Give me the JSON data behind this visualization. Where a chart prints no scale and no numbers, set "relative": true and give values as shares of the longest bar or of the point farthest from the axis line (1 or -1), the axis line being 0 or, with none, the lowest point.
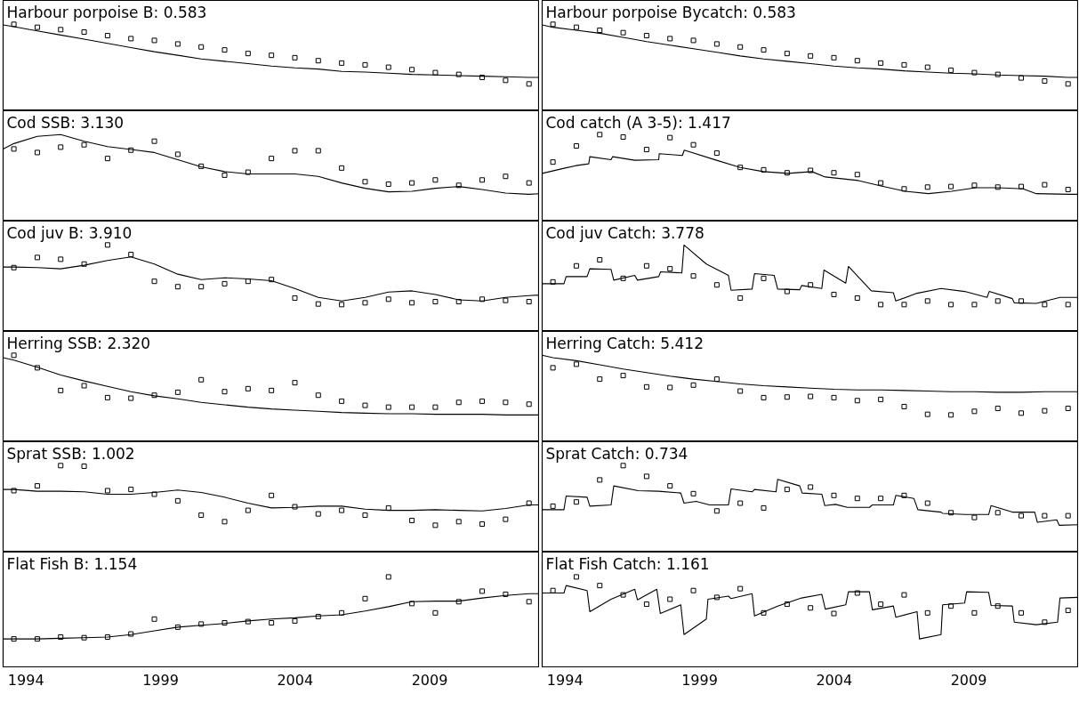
{
  "chart_data": [
    {
      "type": "line",
      "title": "Harbour porpoise B: 0.583",
      "relative": true,
      "tick_labels": false,
      "xlim": [
        1993.15,
        2013.08
      ],
      "x": [
        1993.55,
        1994.42,
        1995.29,
        1996.16,
        1997.03,
        1997.9,
        1998.77,
        1999.64,
        2000.51,
        2001.38,
        2002.25,
        2003.12,
        2003.99,
        2004.86,
        2005.73,
        2006.6,
        2007.47,
        2008.34,
        2009.21,
        2010.08,
        2010.95,
        2011.82,
        2012.69
      ],
      "series": [
        {
          "type": "scatter",
          "marker": "square",
          "color": "#000000",
          "values": [
            1,
            0.95,
            0.91,
            0.87,
            0.81,
            0.76,
            0.73,
            0.67,
            0.62,
            0.57,
            0.51,
            0.48,
            0.44,
            0.39,
            0.35,
            0.32,
            0.28,
            0.24,
            0.19,
            0.16,
            0.11,
            0.06,
            0
          ]
        },
        {
          "color": "#000000",
          "x": [
            1993.15,
            1993.55,
            1994.42,
            1995.29,
            1996.16,
            1997.03,
            1997.9,
            1998.77,
            1999.64,
            2000.51,
            2001.38,
            2002.25,
            2003.12,
            2003.99,
            2004.86,
            2005.73,
            2006.6,
            2007.47,
            2008.34,
            2009.21,
            2010.08,
            2010.95,
            2011.82,
            2012.69,
            2013.08
          ],
          "values": [
            0.99,
            0.96,
            0.89,
            0.82,
            0.75,
            0.68,
            0.61,
            0.54,
            0.48,
            0.42,
            0.38,
            0.34,
            0.3,
            0.27,
            0.25,
            0.21,
            0.2,
            0.18,
            0.16,
            0.15,
            0.14,
            0.13,
            0.12,
            0.11,
            0.11
          ]
        }
      ]
    },
    {
      "type": "line",
      "title": "Harbour porpoise Bycatch: 0.583",
      "relative": true,
      "tick_labels": false,
      "xlim": [
        1993.15,
        2013.08
      ],
      "x": [
        1993.55,
        1994.42,
        1995.29,
        1996.16,
        1997.03,
        1997.9,
        1998.77,
        1999.64,
        2000.51,
        2001.38,
        2002.25,
        2003.12,
        2003.99,
        2004.86,
        2005.73,
        2006.6,
        2007.47,
        2008.34,
        2009.21,
        2010.08,
        2010.95,
        2011.82,
        2012.69
      ],
      "series": [
        {
          "type": "scatter",
          "marker": "square",
          "color": "#000000",
          "values": [
            1,
            0.95,
            0.9,
            0.86,
            0.81,
            0.76,
            0.73,
            0.67,
            0.62,
            0.57,
            0.51,
            0.47,
            0.44,
            0.39,
            0.35,
            0.32,
            0.28,
            0.23,
            0.19,
            0.16,
            0.1,
            0.05,
            0
          ]
        },
        {
          "color": "#000000",
          "x": [
            1993.15,
            1993.55,
            1994.42,
            1995.29,
            1996.16,
            1997.03,
            1997.9,
            1998.77,
            1999.64,
            2000.51,
            2001.38,
            2002.25,
            2003.12,
            2003.99,
            2004.86,
            2005.73,
            2006.6,
            2007.47,
            2008.34,
            2009.21,
            2010.08,
            2010.95,
            2011.82,
            2012.69,
            2013.08
          ],
          "values": [
            0.99,
            0.95,
            0.9,
            0.85,
            0.78,
            0.71,
            0.65,
            0.59,
            0.53,
            0.47,
            0.42,
            0.38,
            0.34,
            0.3,
            0.27,
            0.25,
            0.22,
            0.2,
            0.18,
            0.17,
            0.15,
            0.14,
            0.13,
            0.11,
            0.11
          ]
        }
      ]
    },
    {
      "type": "line",
      "title": "Cod SSB: 3.130",
      "relative": true,
      "tick_labels": false,
      "xlim": [
        1993.15,
        2013.08
      ],
      "x": [
        1993.55,
        1994.42,
        1995.29,
        1996.16,
        1997.03,
        1997.9,
        1998.77,
        1999.64,
        2000.51,
        2001.38,
        2002.25,
        2003.12,
        2003.99,
        2004.86,
        2005.73,
        2006.6,
        2007.47,
        2008.34,
        2009.21,
        2010.08,
        2010.95,
        2011.82,
        2012.69
      ],
      "series": [
        {
          "type": "scatter",
          "marker": "square",
          "color": "#000000",
          "values": [
            0.76,
            0.7,
            0.79,
            0.83,
            0.6,
            0.74,
            0.89,
            0.67,
            0.47,
            0.32,
            0.37,
            0.6,
            0.73,
            0.73,
            0.44,
            0.21,
            0.17,
            0.19,
            0.24,
            0.15,
            0.24,
            0.3,
            0.19
          ]
        },
        {
          "color": "#000000",
          "x": [
            1993.15,
            1993.55,
            1994.42,
            1995.29,
            1996.16,
            1997.03,
            1997.9,
            1998.77,
            1999.64,
            2000.51,
            2001.38,
            2002.25,
            2003.12,
            2003.99,
            2004.86,
            2005.73,
            2006.6,
            2007.47,
            2008.34,
            2009.21,
            2010.08,
            2010.95,
            2011.82,
            2012.69,
            2013.08
          ],
          "values": [
            0.76,
            0.85,
            0.97,
            1,
            0.89,
            0.8,
            0.75,
            0.7,
            0.58,
            0.46,
            0.38,
            0.34,
            0.34,
            0.34,
            0.3,
            0.19,
            0.1,
            0.04,
            0.05,
            0.1,
            0.13,
            0.08,
            0.02,
            0,
            0.01
          ]
        }
      ]
    },
    {
      "type": "line",
      "title": "Cod catch (A 3-5): 1.417",
      "relative": true,
      "tick_labels": false,
      "xlim": [
        1993.15,
        2013.08
      ],
      "x": [
        1993.55,
        1994.42,
        1995.29,
        1996.16,
        1997.03,
        1997.9,
        1998.77,
        1999.64,
        2000.51,
        2001.38,
        2002.25,
        2003.12,
        2003.99,
        2004.86,
        2005.73,
        2006.6,
        2007.47,
        2008.34,
        2009.21,
        2010.08,
        2010.95,
        2011.82,
        2012.69
      ],
      "series": [
        {
          "type": "scatter",
          "marker": "square",
          "color": "#000000",
          "values": [
            0.54,
            0.81,
            1,
            0.96,
            0.75,
            0.95,
            0.83,
            0.69,
            0.45,
            0.41,
            0.36,
            0.4,
            0.36,
            0.33,
            0.19,
            0.09,
            0.12,
            0.13,
            0.15,
            0.12,
            0.13,
            0.16,
            0.08
          ]
        },
        {
          "color": "#000000",
          "x": [
            1993.15,
            1994.0,
            1994.4,
            1994.88,
            1994.92,
            1995.71,
            1995.77,
            1996.59,
            1997.48,
            1997.5,
            1998.36,
            1998.43,
            1999.63,
            2000.51,
            2001.37,
            2002.28,
            2003.17,
            2003.67,
            2004.9,
            2005.74,
            2006.64,
            2007.5,
            2008.36,
            2009.26,
            2010.12,
            2011.02,
            2011.51,
            2012.74,
            2013.08
          ],
          "values": [
            0.35,
            0.44,
            0.48,
            0.51,
            0.63,
            0.58,
            0.63,
            0.57,
            0.58,
            0.68,
            0.65,
            0.74,
            0.57,
            0.45,
            0.38,
            0.35,
            0.38,
            0.29,
            0.23,
            0.14,
            0.05,
            0.01,
            0.05,
            0.11,
            0.11,
            0.09,
            0.01,
            0,
            0
          ]
        }
      ]
    },
    {
      "type": "line",
      "title": "Cod juv B: 3.910",
      "relative": true,
      "tick_labels": false,
      "xlim": [
        1993.15,
        2013.08
      ],
      "x": [
        1993.55,
        1994.42,
        1995.29,
        1996.16,
        1997.03,
        1997.9,
        1998.77,
        1999.64,
        2000.51,
        2001.38,
        2002.25,
        2003.12,
        2003.99,
        2004.86,
        2005.73,
        2006.6,
        2007.47,
        2008.34,
        2009.21,
        2010.08,
        2010.95,
        2011.82,
        2012.69
      ],
      "series": [
        {
          "type": "scatter",
          "marker": "square",
          "color": "#000000",
          "values": [
            0.62,
            0.79,
            0.76,
            0.68,
            1,
            0.84,
            0.39,
            0.3,
            0.3,
            0.35,
            0.39,
            0.42,
            0.11,
            0.01,
            0,
            0.03,
            0.09,
            0.03,
            0.05,
            0.05,
            0.09,
            0.07,
            0.05
          ]
        },
        {
          "color": "#000000",
          "x": [
            1993.15,
            1993.55,
            1994.42,
            1995.29,
            1996.16,
            1997.03,
            1997.9,
            1998.77,
            1999.64,
            2000.51,
            2001.38,
            2002.25,
            2003.12,
            2003.99,
            2004.86,
            2005.73,
            2006.6,
            2007.47,
            2008.34,
            2009.21,
            2010.08,
            2010.95,
            2011.82,
            2012.69,
            2013.08
          ],
          "values": [
            0.63,
            0.63,
            0.62,
            0.6,
            0.66,
            0.74,
            0.8,
            0.68,
            0.51,
            0.42,
            0.45,
            0.43,
            0.4,
            0.27,
            0.12,
            0.06,
            0.12,
            0.21,
            0.23,
            0.17,
            0.08,
            0.06,
            0.12,
            0.15,
            0.16
          ]
        }
      ]
    },
    {
      "type": "line",
      "title": "Cod juv Catch: 3.778",
      "relative": true,
      "tick_labels": false,
      "xlim": [
        1993.15,
        2013.08
      ],
      "x": [
        1993.55,
        1994.42,
        1995.29,
        1996.16,
        1997.03,
        1997.9,
        1998.77,
        1999.64,
        2000.51,
        2001.38,
        2002.25,
        2003.12,
        2003.99,
        2004.86,
        2005.73,
        2006.6,
        2007.47,
        2008.34,
        2009.21,
        2010.08,
        2010.95,
        2011.82,
        2012.69
      ],
      "series": [
        {
          "type": "scatter",
          "marker": "square",
          "color": "#000000",
          "values": [
            0.38,
            0.65,
            0.75,
            0.44,
            0.65,
            0.6,
            0.48,
            0.33,
            0.11,
            0.44,
            0.22,
            0.33,
            0.17,
            0.11,
            0,
            0,
            0.06,
            0,
            0,
            0.06,
            0.06,
            0,
            0
          ]
        },
        {
          "color": "#000000",
          "x": [
            1993.15,
            1993.96,
            1994.04,
            1994.82,
            1994.92,
            1995.71,
            1995.81,
            1996.59,
            1996.69,
            1997.48,
            1997.55,
            1998.34,
            1998.42,
            1999.25,
            2000.07,
            2000.17,
            2000.95,
            2001.04,
            2001.77,
            2001.9,
            2002.72,
            2002.79,
            2003.54,
            2003.62,
            2004.43,
            2004.53,
            2005.38,
            2006.2,
            2006.29,
            2007.08,
            2007.97,
            2008.85,
            2009.68,
            2009.76,
            2010.62,
            2010.69,
            2011.51,
            2012.39,
            2013.08
          ],
          "values": [
            0.35,
            0.35,
            0.47,
            0.47,
            0.6,
            0.59,
            0.41,
            0.49,
            0.41,
            0.47,
            0.55,
            0.53,
            1,
            0.68,
            0.49,
            0.24,
            0.26,
            0.52,
            0.49,
            0.26,
            0.25,
            0.32,
            0.27,
            0.58,
            0.36,
            0.64,
            0.23,
            0.2,
            0.06,
            0.19,
            0.27,
            0.22,
            0.12,
            0.22,
            0.1,
            0.03,
            0.02,
            0.12,
            0.12
          ]
        }
      ]
    },
    {
      "type": "line",
      "title": "Herring SSB: 2.320",
      "relative": true,
      "tick_labels": false,
      "xlim": [
        1993.15,
        2013.08
      ],
      "x": [
        1993.55,
        1994.42,
        1995.29,
        1996.16,
        1997.03,
        1997.9,
        1998.77,
        1999.64,
        2000.51,
        2001.38,
        2002.25,
        2003.12,
        2003.99,
        2004.86,
        2005.73,
        2006.6,
        2007.47,
        2008.34,
        2009.21,
        2010.08,
        2010.95,
        2011.82,
        2012.69
      ],
      "series": [
        {
          "type": "scatter",
          "marker": "square",
          "color": "#000000",
          "values": [
            1,
            0.79,
            0.41,
            0.49,
            0.29,
            0.28,
            0.33,
            0.38,
            0.59,
            0.39,
            0.44,
            0.41,
            0.54,
            0.33,
            0.23,
            0.16,
            0.13,
            0.13,
            0.13,
            0.21,
            0.23,
            0.21,
            0.18
          ]
        },
        {
          "color": "#000000",
          "x": [
            1993.15,
            1993.55,
            1994.42,
            1995.29,
            1996.16,
            1997.03,
            1997.9,
            1998.77,
            1999.64,
            2000.51,
            2001.38,
            2002.25,
            2003.12,
            2003.99,
            2004.86,
            2005.73,
            2006.6,
            2007.47,
            2008.34,
            2009.21,
            2010.08,
            2010.95,
            2011.82,
            2012.69,
            2013.08
          ],
          "values": [
            0.96,
            0.92,
            0.8,
            0.67,
            0.57,
            0.48,
            0.39,
            0.32,
            0.27,
            0.21,
            0.17,
            0.13,
            0.1,
            0.08,
            0.06,
            0.04,
            0.03,
            0.02,
            0.02,
            0.01,
            0.01,
            0.01,
            0,
            0,
            0
          ]
        }
      ]
    },
    {
      "type": "line",
      "title": "Herring Catch: 5.412",
      "relative": true,
      "tick_labels": false,
      "xlim": [
        1993.15,
        2013.08
      ],
      "x": [
        1993.55,
        1994.42,
        1995.29,
        1996.16,
        1997.03,
        1997.9,
        1998.77,
        1999.64,
        2000.51,
        2001.38,
        2002.25,
        2003.12,
        2003.99,
        2004.86,
        2005.73,
        2006.6,
        2007.47,
        2008.34,
        2009.21,
        2010.08,
        2010.95,
        2011.82,
        2012.69
      ],
      "series": [
        {
          "type": "scatter",
          "marker": "square",
          "color": "#000000",
          "values": [
            0.79,
            0.85,
            0.6,
            0.66,
            0.47,
            0.46,
            0.5,
            0.6,
            0.4,
            0.29,
            0.3,
            0.31,
            0.29,
            0.24,
            0.26,
            0.14,
            0.01,
            0,
            0.06,
            0.11,
            0.03,
            0.07,
            0.11
          ]
        },
        {
          "color": "#000000",
          "x": [
            1993.15,
            1993.55,
            1994.42,
            1995.29,
            1996.16,
            1997.03,
            1997.9,
            1998.77,
            1999.64,
            2000.51,
            2001.38,
            2002.25,
            2003.12,
            2003.99,
            2004.86,
            2005.73,
            2006.6,
            2007.47,
            2008.34,
            2009.21,
            2010.08,
            2010.95,
            2011.82,
            2012.69,
            2013.08
          ],
          "values": [
            1,
            0.96,
            0.91,
            0.84,
            0.77,
            0.71,
            0.65,
            0.6,
            0.56,
            0.52,
            0.49,
            0.47,
            0.45,
            0.43,
            0.42,
            0.42,
            0.41,
            0.4,
            0.39,
            0.39,
            0.38,
            0.38,
            0.39,
            0.39,
            0.39
          ]
        }
      ]
    },
    {
      "type": "line",
      "title": "Sprat SSB: 1.002",
      "relative": true,
      "tick_labels": false,
      "xlim": [
        1993.15,
        2013.08
      ],
      "x": [
        1993.55,
        1994.42,
        1995.29,
        1996.16,
        1997.03,
        1997.9,
        1998.77,
        1999.64,
        2000.51,
        2001.38,
        2002.25,
        2003.12,
        2003.99,
        2004.86,
        2005.73,
        2006.6,
        2007.47,
        2008.34,
        2009.21,
        2010.08,
        2010.95,
        2011.82,
        2012.69
      ],
      "series": [
        {
          "type": "scatter",
          "marker": "square",
          "color": "#000000",
          "values": [
            0.58,
            0.66,
            1,
            0.99,
            0.58,
            0.6,
            0.52,
            0.41,
            0.17,
            0.06,
            0.25,
            0.5,
            0.31,
            0.19,
            0.25,
            0.17,
            0.29,
            0.08,
            0,
            0.06,
            0.02,
            0.1,
            0.37
          ]
        },
        {
          "color": "#000000",
          "x": [
            1993.15,
            1993.55,
            1994.42,
            1995.29,
            1996.16,
            1997.03,
            1997.9,
            1998.77,
            1999.64,
            2000.51,
            2001.38,
            2002.25,
            2003.12,
            2003.99,
            2004.86,
            2005.73,
            2006.6,
            2007.47,
            2008.34,
            2009.21,
            2010.08,
            2010.95,
            2011.82,
            2012.69,
            2013.08
          ],
          "values": [
            0.6,
            0.6,
            0.57,
            0.57,
            0.56,
            0.52,
            0.52,
            0.55,
            0.59,
            0.55,
            0.47,
            0.37,
            0.29,
            0.3,
            0.32,
            0.32,
            0.27,
            0.25,
            0.25,
            0.26,
            0.25,
            0.24,
            0.28,
            0.34,
            0.34
          ]
        }
      ]
    },
    {
      "type": "line",
      "title": "Sprat Catch: 0.734",
      "relative": true,
      "tick_labels": false,
      "xlim": [
        1993.15,
        2013.08
      ],
      "x": [
        1993.55,
        1994.42,
        1995.29,
        1996.16,
        1997.03,
        1997.9,
        1998.77,
        1999.64,
        2000.51,
        2001.38,
        2002.25,
        2003.12,
        2003.99,
        2004.86,
        2005.73,
        2006.6,
        2007.47,
        2008.34,
        2009.21,
        2010.08,
        2010.95,
        2011.82,
        2012.69
      ],
      "series": [
        {
          "type": "scatter",
          "marker": "square",
          "color": "#000000",
          "values": [
            0.32,
            0.39,
            0.76,
            1,
            0.82,
            0.66,
            0.53,
            0.24,
            0.37,
            0.29,
            0.6,
            0.64,
            0.5,
            0.45,
            0.45,
            0.5,
            0.37,
            0.21,
            0.13,
            0.21,
            0.16,
            0.16,
            0.16
          ]
        },
        {
          "color": "#000000",
          "x": [
            1993.15,
            1993.96,
            1994.04,
            1994.82,
            1994.92,
            1995.71,
            1995.81,
            1996.72,
            1997.48,
            1998.3,
            1998.42,
            1998.87,
            1999.37,
            2000.07,
            2000.17,
            2000.95,
            2001.04,
            2001.84,
            2001.9,
            2002.72,
            2002.81,
            2003.54,
            2003.65,
            2004.05,
            2004.49,
            2005.31,
            2005.42,
            2006.2,
            2006.29,
            2006.96,
            2007.11,
            2007.97,
            2008.03,
            2008.85,
            2009.74,
            2009.83,
            2010.62,
            2010.69,
            2011.45,
            2011.55,
            2012.27,
            2012.36,
            2013.08
          ],
          "values": [
            0.26,
            0.26,
            0.49,
            0.47,
            0.32,
            0.34,
            0.66,
            0.58,
            0.57,
            0.54,
            0.37,
            0.4,
            0.34,
            0.34,
            0.61,
            0.56,
            0.6,
            0.56,
            0.77,
            0.66,
            0.54,
            0.52,
            0.33,
            0.35,
            0.3,
            0.3,
            0.34,
            0.34,
            0.5,
            0.45,
            0.26,
            0.22,
            0.2,
            0.18,
            0.18,
            0.33,
            0.22,
            0.22,
            0.22,
            0.05,
            0.09,
            0,
            0.01
          ]
        }
      ]
    },
    {
      "type": "line",
      "title": "Flat Fish B: 1.154",
      "relative": true,
      "tick_labels": "x",
      "xlim": [
        1993.15,
        2013.08
      ],
      "xticks": [
        1994,
        1999,
        2004,
        2009
      ],
      "x": [
        1993.55,
        1994.42,
        1995.29,
        1996.16,
        1997.03,
        1997.9,
        1998.77,
        1999.64,
        2000.51,
        2001.38,
        2002.25,
        2003.12,
        2003.99,
        2004.86,
        2005.73,
        2006.6,
        2007.47,
        2008.34,
        2009.21,
        2010.08,
        2010.95,
        2011.82,
        2012.69
      ],
      "series": [
        {
          "type": "scatter",
          "marker": "square",
          "color": "#000000",
          "values": [
            0,
            0,
            0.03,
            0.02,
            0.03,
            0.08,
            0.32,
            0.19,
            0.24,
            0.26,
            0.28,
            0.26,
            0.29,
            0.36,
            0.42,
            0.65,
            1,
            0.57,
            0.42,
            0.6,
            0.77,
            0.72,
            0.6
          ]
        },
        {
          "color": "#000000",
          "x": [
            1993.15,
            1993.55,
            1994.42,
            1995.29,
            1996.16,
            1997.03,
            1997.9,
            1998.77,
            1999.64,
            2000.51,
            2001.38,
            2002.25,
            2003.12,
            2003.99,
            2004.86,
            2005.73,
            2006.6,
            2007.47,
            2008.34,
            2009.21,
            2010.08,
            2010.95,
            2011.82,
            2012.69,
            2013.08
          ],
          "values": [
            0,
            0,
            0,
            0.01,
            0.02,
            0.03,
            0.07,
            0.13,
            0.19,
            0.22,
            0.25,
            0.29,
            0.32,
            0.34,
            0.37,
            0.39,
            0.45,
            0.52,
            0.6,
            0.61,
            0.61,
            0.66,
            0.7,
            0.73,
            0.73
          ]
        }
      ]
    },
    {
      "type": "line",
      "title": "Flat Fish Catch: 1.161",
      "relative": true,
      "tick_labels": "x",
      "xlim": [
        1993.15,
        2013.08
      ],
      "xticks": [
        1994,
        1999,
        2004,
        2009
      ],
      "x": [
        1993.55,
        1994.42,
        1995.29,
        1996.16,
        1997.03,
        1997.9,
        1998.77,
        1999.64,
        2000.51,
        2001.38,
        2002.25,
        2003.12,
        2003.99,
        2004.86,
        2005.73,
        2006.6,
        2007.47,
        2008.34,
        2009.21,
        2010.08,
        2010.95,
        2011.82,
        2012.69
      ],
      "series": [
        {
          "type": "scatter",
          "marker": "square",
          "color": "#000000",
          "values": [
            0.78,
            1,
            0.86,
            0.71,
            0.56,
            0.64,
            0.78,
            0.67,
            0.81,
            0.42,
            0.56,
            0.5,
            0.41,
            0.74,
            0.56,
            0.71,
            0.42,
            0.53,
            0.42,
            0.53,
            0.42,
            0.27,
            0.46
          ]
        },
        {
          "color": "#000000",
          "x": [
            1993.15,
            1993.96,
            1994.04,
            1994.82,
            1994.92,
            1995.71,
            1996.59,
            1996.69,
            1997.41,
            1997.54,
            1998.3,
            1998.42,
            1999.25,
            1999.31,
            2000.07,
            2000.17,
            2000.95,
            2001.04,
            2001.9,
            2002.79,
            2003.54,
            2003.67,
            2004.43,
            2004.53,
            2005.31,
            2005.42,
            2006.2,
            2006.29,
            2007.08,
            2007.17,
            2007.97,
            2008.03,
            2008.85,
            2008.92,
            2009.74,
            2009.83,
            2010.62,
            2010.69,
            2011.51,
            2012.3,
            2012.39,
            2013.08
          ],
          "values": [
            0.74,
            0.74,
            0.86,
            0.78,
            0.44,
            0.64,
            0.8,
            0.63,
            0.8,
            0.41,
            0.55,
            0.07,
            0.32,
            0.64,
            0.69,
            0.65,
            0.73,
            0.37,
            0.53,
            0.66,
            0.72,
            0.48,
            0.55,
            0.76,
            0.76,
            0.47,
            0.53,
            0.35,
            0.44,
            0,
            0.07,
            0.55,
            0.58,
            0.76,
            0.75,
            0.54,
            0.53,
            0.27,
            0.23,
            0.27,
            0.66,
            0.67
          ]
        }
      ]
    }
  ]
}
